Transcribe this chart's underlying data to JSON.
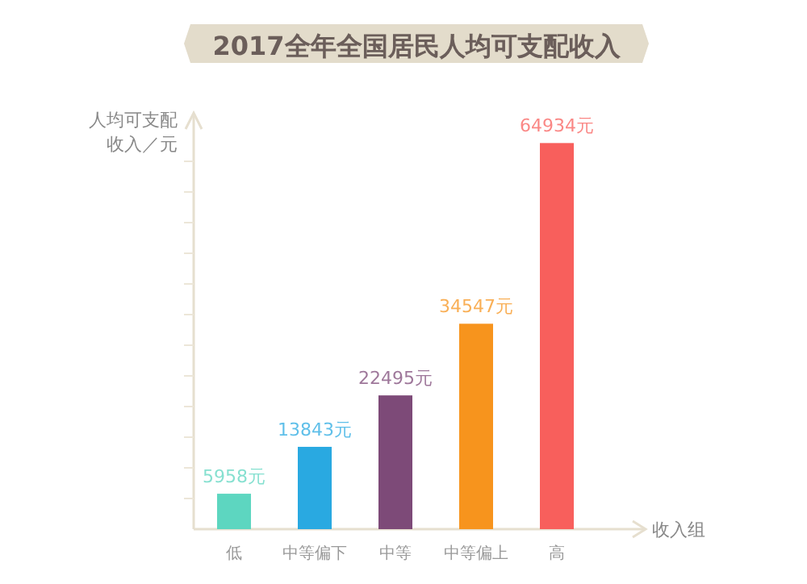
{
  "chart_data": {
    "type": "bar",
    "title": "2017全年全国居民人均可支配收入",
    "ylabel": "人均可支配收入／元",
    "xlabel": "收入组",
    "categories": [
      "低",
      "中等偏下",
      "中等",
      "中等偏上",
      "高"
    ],
    "values": [
      5958,
      13843,
      22495,
      34547,
      64934
    ],
    "colors": [
      "#5dd6c0",
      "#29a9e1",
      "#7d4a78",
      "#f7941d",
      "#f85f5c"
    ],
    "value_labels": [
      "5958元",
      "13843元",
      "22495元",
      "34547元",
      "64934元"
    ],
    "ylim": [
      0,
      70000
    ]
  }
}
